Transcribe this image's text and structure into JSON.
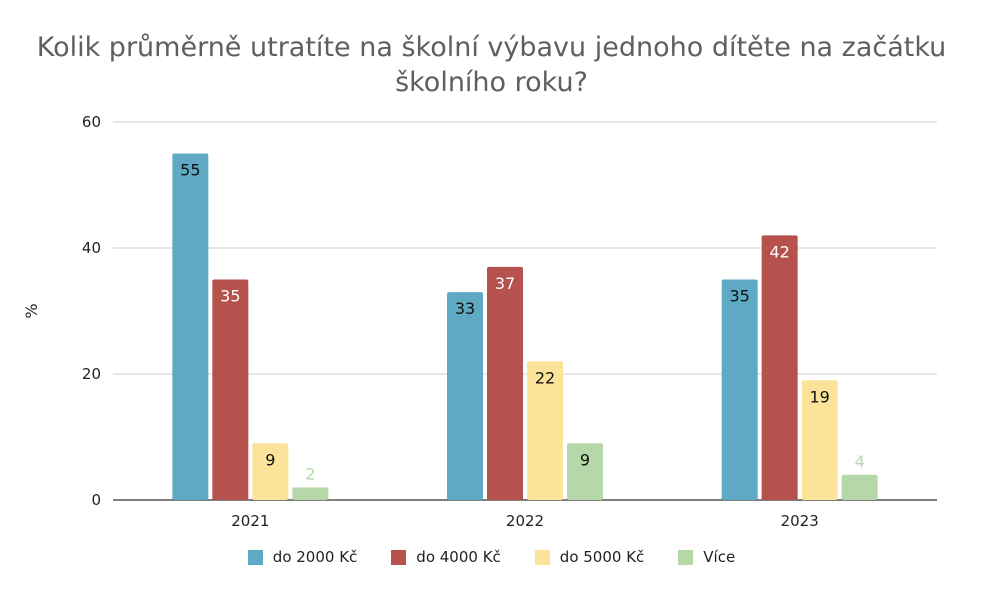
{
  "chart_data": {
    "type": "bar",
    "title_lines": [
      "Kolik průměrně utratíte na školní výbavu jednoho dítěte na začátku",
      "školního roku?"
    ],
    "xlabel": "",
    "ylabel": "%",
    "ylim": [
      0,
      60
    ],
    "yticks": [
      0,
      20,
      40,
      60
    ],
    "grid": true,
    "legend_position": "bottom",
    "categories": [
      "2021",
      "2022",
      "2023"
    ],
    "series": [
      {
        "name": "do 2000 Kč",
        "color": "#5ea9c4",
        "label_color": "#111111",
        "values": [
          55,
          33,
          35
        ]
      },
      {
        "name": "do 4000 Kč",
        "color": "#b5524d",
        "label_color": "#ffffff",
        "values": [
          35,
          37,
          42
        ]
      },
      {
        "name": "do 5000 Kč",
        "color": "#fbe49a",
        "label_color": "#111111",
        "values": [
          9,
          22,
          19
        ]
      },
      {
        "name": "Více",
        "color": "#b6d7a8",
        "label_color": "#111111",
        "values": [
          2,
          9,
          4
        ]
      }
    ]
  }
}
